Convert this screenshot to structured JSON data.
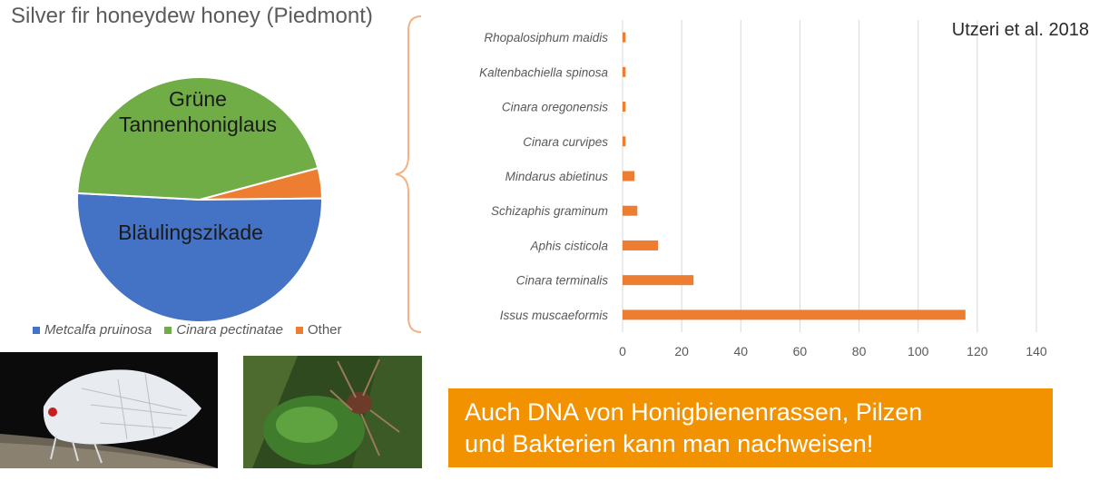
{
  "citation": "Utzeri et al. 2018",
  "banner": {
    "line1": "Auch DNA von Honigbienenrassen, Pilzen",
    "line2": "und Bakterien kann man nachweisen!"
  },
  "pie_labels": {
    "green_line1": "Grüne",
    "green_line2": "Tannenhoniglaus",
    "blue": "Bläulingszikade"
  },
  "colors": {
    "blue": "#4472c4",
    "green": "#70ad47",
    "orange": "#ed7d31"
  },
  "photos": {
    "left": "insect-photo",
    "right": "aphid-photo"
  },
  "chart_data": [
    {
      "type": "pie",
      "title": "Silver fir honeydew honey (Piedmont)",
      "legend_position": "bottom",
      "slices": [
        {
          "name": "Metcalfa pruinosa",
          "value": 51,
          "color": "#4472c4"
        },
        {
          "name": "Cinara pectinatae",
          "value": 45,
          "color": "#70ad47"
        },
        {
          "name": "Other",
          "value": 4,
          "color": "#ed7d31"
        }
      ]
    },
    {
      "type": "bar",
      "orientation": "horizontal",
      "categories": [
        "Rhopalosiphum maidis",
        "Kaltenbachiella spinosa",
        "Cinara oregonensis",
        "Cinara curvipes",
        "Mindarus abietinus",
        "Schizaphis graminum",
        "Aphis cisticola",
        "Cinara terminalis",
        "Issus muscaeformis"
      ],
      "values": [
        1,
        1,
        1,
        1,
        4,
        5,
        12,
        24,
        116
      ],
      "xlim": [
        0,
        140
      ],
      "xticks": [
        0,
        20,
        40,
        60,
        80,
        100,
        120,
        140
      ],
      "grid": true,
      "color": "#ed7d31"
    }
  ]
}
